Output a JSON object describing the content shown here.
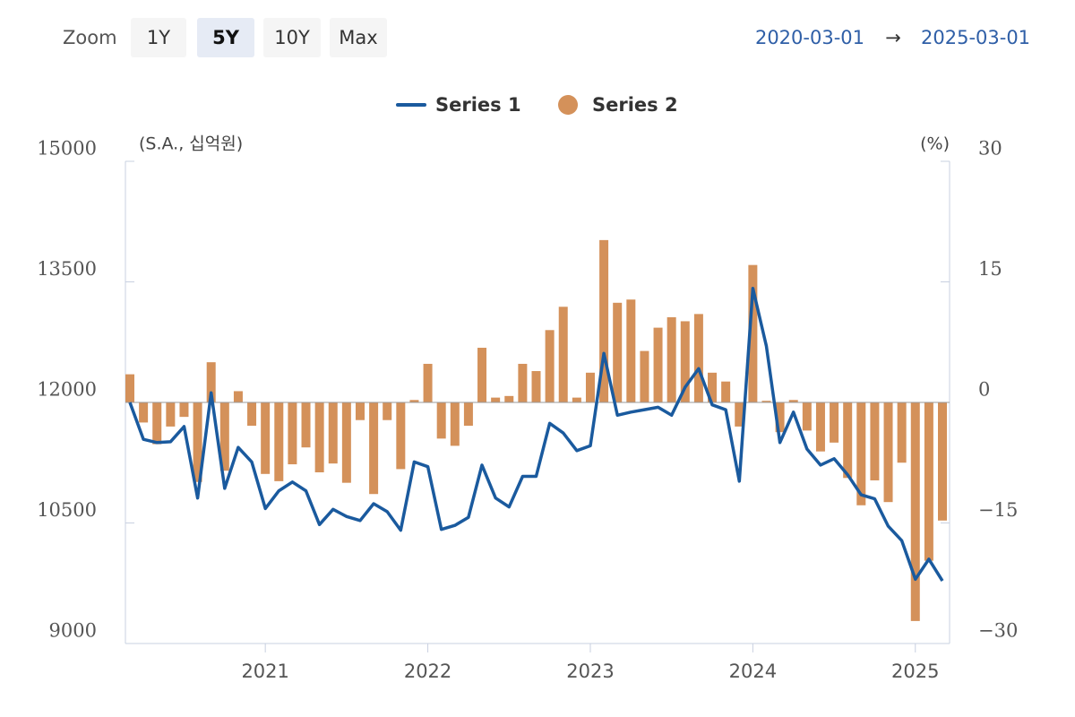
{
  "zoom": {
    "label": "Zoom",
    "buttons": [
      "1Y",
      "5Y",
      "10Y",
      "Max"
    ],
    "selected": 1
  },
  "range": {
    "from": "2020-03-01",
    "separator": "→",
    "to": "2025-03-01"
  },
  "chart_data": {
    "type": "combo",
    "y_label": "(S.A., 십억원)",
    "y2_label": "(%)",
    "x": [
      "2020-03",
      "2020-04",
      "2020-05",
      "2020-06",
      "2020-07",
      "2020-08",
      "2020-09",
      "2020-10",
      "2020-11",
      "2020-12",
      "2021-01",
      "2021-02",
      "2021-03",
      "2021-04",
      "2021-05",
      "2021-06",
      "2021-07",
      "2021-08",
      "2021-09",
      "2021-10",
      "2021-11",
      "2021-12",
      "2022-01",
      "2022-02",
      "2022-03",
      "2022-04",
      "2022-05",
      "2022-06",
      "2022-07",
      "2022-08",
      "2022-09",
      "2022-10",
      "2022-11",
      "2022-12",
      "2023-01",
      "2023-02",
      "2023-03",
      "2023-04",
      "2023-05",
      "2023-06",
      "2023-07",
      "2023-08",
      "2023-09",
      "2023-10",
      "2023-11",
      "2023-12",
      "2024-01",
      "2024-02",
      "2024-03",
      "2024-04",
      "2024-05",
      "2024-06",
      "2024-07",
      "2024-08",
      "2024-09",
      "2024-10",
      "2024-11",
      "2024-12",
      "2025-01",
      "2025-02",
      "2025-03"
    ],
    "xlim": [
      "2020-03",
      "2025-03"
    ],
    "xticks": [
      {
        "value": "2021-01",
        "label": "2021"
      },
      {
        "value": "2022-01",
        "label": "2022"
      },
      {
        "value": "2023-01",
        "label": "2023"
      },
      {
        "value": "2024-01",
        "label": "2024"
      },
      {
        "value": "2025-01",
        "label": "2025"
      }
    ],
    "ylim": [
      9000,
      15000
    ],
    "yticks": [
      9000,
      10500,
      12000,
      13500,
      15000
    ],
    "y2lim": [
      -30,
      30
    ],
    "y2ticks": [
      {
        "value": -30,
        "label": "−30"
      },
      {
        "value": -15,
        "label": "−15"
      },
      0,
      15,
      30
    ],
    "series": [
      {
        "name": "Series 1",
        "type": "line",
        "color": "#1a5a9e",
        "values": [
          12000,
          11540,
          11500,
          11510,
          11700,
          10810,
          12120,
          10930,
          11440,
          11260,
          10680,
          10900,
          11010,
          10900,
          10480,
          10670,
          10580,
          10530,
          10740,
          10640,
          10410,
          11260,
          11200,
          10420,
          10470,
          10570,
          11220,
          10810,
          10700,
          11080,
          11080,
          11740,
          11620,
          11400,
          11460,
          12610,
          11840,
          11880,
          11910,
          11940,
          11840,
          12190,
          12420,
          11970,
          11910,
          11020,
          13420,
          12700,
          11500,
          11880,
          11420,
          11220,
          11300,
          11100,
          10850,
          10800,
          10460,
          10280,
          9800,
          10050,
          9780
        ]
      },
      {
        "name": "Series 2",
        "type": "bar",
        "axis": "y2",
        "color": "#d4915a",
        "values": [
          3.5,
          -2.5,
          -5.2,
          -3.0,
          -1.8,
          -9.9,
          5.0,
          -8.5,
          1.4,
          -2.9,
          -8.9,
          -9.8,
          -7.7,
          -5.6,
          -8.7,
          -7.6,
          -10.0,
          -2.2,
          -11.4,
          -2.2,
          -8.3,
          0.3,
          4.8,
          -4.5,
          -5.4,
          -2.9,
          6.8,
          0.6,
          0.8,
          4.8,
          3.9,
          9.0,
          11.9,
          0.6,
          3.7,
          20.2,
          12.4,
          12.8,
          6.4,
          9.3,
          10.6,
          10.1,
          11.0,
          3.7,
          2.6,
          -3.0,
          17.1,
          0.2,
          -3.7,
          0.3,
          -3.5,
          -6.1,
          -5.0,
          -9.4,
          -12.8,
          -9.7,
          -12.4,
          -7.5,
          -27.2,
          -19.7,
          -14.7
        ]
      }
    ]
  }
}
